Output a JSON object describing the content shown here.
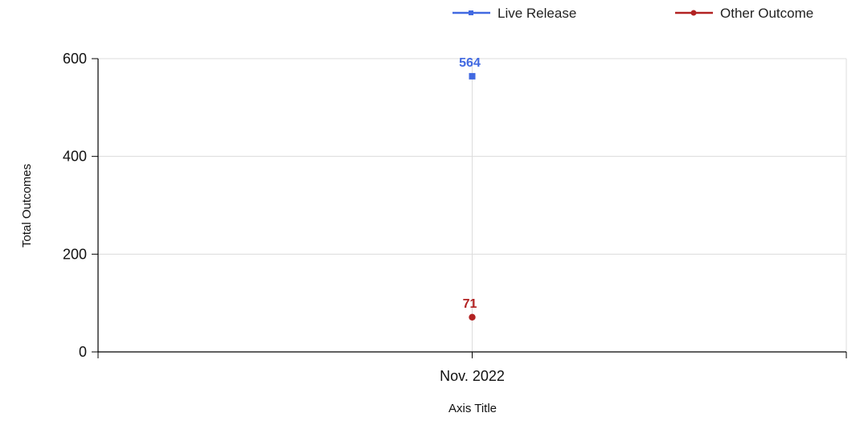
{
  "chart_data": {
    "type": "line",
    "categories": [
      "Nov. 2022"
    ],
    "series": [
      {
        "name": "Live Release",
        "values": [
          564
        ],
        "color": "#4169e1",
        "marker": "square"
      },
      {
        "name": "Other Outcome",
        "values": [
          71
        ],
        "color": "#b22222",
        "marker": "circle"
      }
    ],
    "xlabel": "Axis Title",
    "ylabel": "Total Outcomes",
    "ylim": [
      0,
      600
    ],
    "yticks": [
      "0",
      "200",
      "400",
      "600"
    ],
    "grid": true,
    "legend_position": "top-right",
    "data_labels": true
  }
}
